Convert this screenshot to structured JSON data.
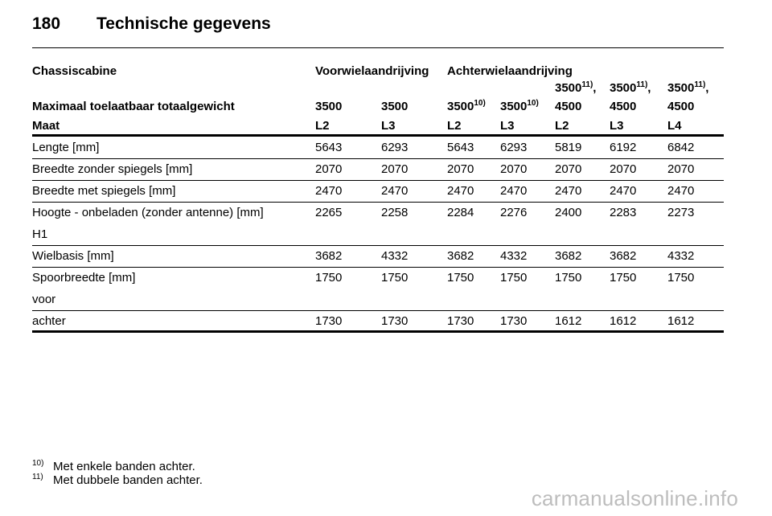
{
  "header": {
    "page_number": "180",
    "title": "Technische gegevens"
  },
  "table": {
    "group_label": "Chassiscabine",
    "group_front": "Voorwielaandrijving",
    "group_rear": "Achterwielaandrijving",
    "weight_label": "Maximaal toelaatbaar totaalgewicht",
    "weights": [
      {
        "value": "3500",
        "sup": "",
        "line2": ""
      },
      {
        "value": "3500",
        "sup": "",
        "line2": ""
      },
      {
        "value": "3500",
        "sup": "10)",
        "line2": ""
      },
      {
        "value": "3500",
        "sup": "10)",
        "line2": ""
      },
      {
        "value": "3500",
        "sup": "11)",
        "suffix": ",",
        "line2": "4500"
      },
      {
        "value": "3500",
        "sup": "11)",
        "suffix": ",",
        "line2": "4500"
      },
      {
        "value": "3500",
        "sup": "11)",
        "suffix": ",",
        "line2": "4500"
      }
    ],
    "size_label": "Maat",
    "sizes": [
      "L2",
      "L3",
      "L2",
      "L3",
      "L2",
      "L3",
      "L4"
    ],
    "rows": [
      {
        "label": "Lengte [mm]",
        "sublabel": "",
        "values": [
          "5643",
          "6293",
          "5643",
          "6293",
          "5819",
          "6192",
          "6842"
        ]
      },
      {
        "label": "Breedte zonder spiegels [mm]",
        "sublabel": "",
        "values": [
          "2070",
          "2070",
          "2070",
          "2070",
          "2070",
          "2070",
          "2070"
        ]
      },
      {
        "label": "Breedte met spiegels [mm]",
        "sublabel": "",
        "values": [
          "2470",
          "2470",
          "2470",
          "2470",
          "2470",
          "2470",
          "2470"
        ]
      },
      {
        "label": "Hoogte - onbeladen (zonder antenne) [mm]",
        "sublabel": "H1",
        "values": [
          "2265",
          "2258",
          "2284",
          "2276",
          "2400",
          "2283",
          "2273"
        ]
      },
      {
        "label": "Wielbasis [mm]",
        "sublabel": "",
        "values": [
          "3682",
          "4332",
          "3682",
          "4332",
          "3682",
          "3682",
          "4332"
        ]
      },
      {
        "label": "Spoorbreedte [mm]",
        "sublabel": "voor",
        "values": [
          "1750",
          "1750",
          "1750",
          "1750",
          "1750",
          "1750",
          "1750"
        ]
      },
      {
        "label": "achter",
        "sublabel": "",
        "values": [
          "1730",
          "1730",
          "1730",
          "1730",
          "1612",
          "1612",
          "1612"
        ]
      }
    ]
  },
  "footnotes": [
    {
      "mark": "10)",
      "text": "Met enkele banden achter."
    },
    {
      "mark": "11)",
      "text": "Met dubbele banden achter."
    }
  ],
  "watermark": "carmanualsonline.info"
}
